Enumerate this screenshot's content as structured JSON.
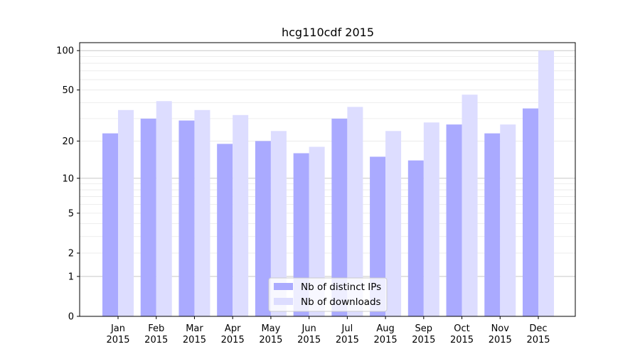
{
  "chart_data": {
    "type": "bar",
    "title": "hcg110cdf 2015",
    "xlabel": "",
    "ylabel": "",
    "y_scale": "log1p",
    "ylim": [
      0,
      115
    ],
    "grid": true,
    "legend_placement": "bottom-center",
    "categories": [
      [
        "Jan",
        "2015"
      ],
      [
        "Feb",
        "2015"
      ],
      [
        "Mar",
        "2015"
      ],
      [
        "Apr",
        "2015"
      ],
      [
        "May",
        "2015"
      ],
      [
        "Jun",
        "2015"
      ],
      [
        "Jul",
        "2015"
      ],
      [
        "Aug",
        "2015"
      ],
      [
        "Sep",
        "2015"
      ],
      [
        "Oct",
        "2015"
      ],
      [
        "Nov",
        "2015"
      ],
      [
        "Dec",
        "2015"
      ]
    ],
    "y_ticks": [
      0,
      1,
      2,
      5,
      10,
      20,
      50,
      100
    ],
    "series": [
      {
        "name": "Nb of distinct IPs",
        "color": "#aaaaff",
        "values": [
          23,
          30,
          29,
          19,
          20,
          16,
          30,
          15,
          14,
          27,
          23,
          36
        ]
      },
      {
        "name": "Nb of downloads",
        "color": "#ddddff",
        "values": [
          35,
          41,
          35,
          32,
          24,
          18,
          37,
          24,
          28,
          46,
          27,
          100
        ]
      }
    ]
  }
}
